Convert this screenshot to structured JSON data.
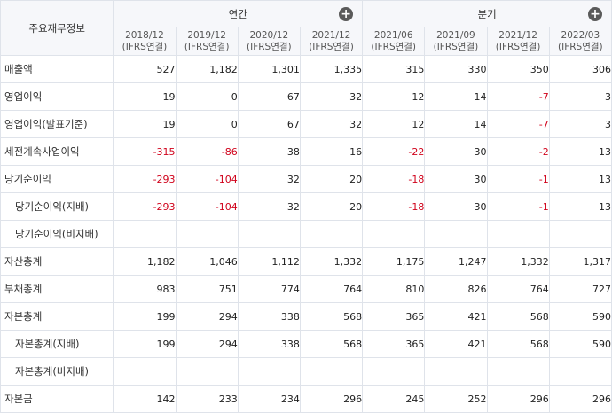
{
  "table": {
    "corner_label": "주요재무정보",
    "groups": [
      {
        "title": "연간",
        "add_icon": "plus-circle-icon"
      },
      {
        "title": "분기",
        "add_icon": "plus-circle-icon"
      }
    ],
    "columns": [
      {
        "date": "2018/12",
        "basis": "(IFRS연결)"
      },
      {
        "date": "2019/12",
        "basis": "(IFRS연결)"
      },
      {
        "date": "2020/12",
        "basis": "(IFRS연결)"
      },
      {
        "date": "2021/12",
        "basis": "(IFRS연결)"
      },
      {
        "date": "2021/06",
        "basis": "(IFRS연결)"
      },
      {
        "date": "2021/09",
        "basis": "(IFRS연결)"
      },
      {
        "date": "2021/12",
        "basis": "(IFRS연결)"
      },
      {
        "date": "2022/03",
        "basis": "(IFRS연결)"
      }
    ],
    "rows": [
      {
        "label": "매출액",
        "indent": false,
        "values": [
          "527",
          "1,182",
          "1,301",
          "1,335",
          "315",
          "330",
          "350",
          "306"
        ]
      },
      {
        "label": "영업이익",
        "indent": false,
        "values": [
          "19",
          "0",
          "67",
          "32",
          "12",
          "14",
          "-7",
          "3"
        ]
      },
      {
        "label": "영업이익(발표기준)",
        "indent": false,
        "values": [
          "19",
          "0",
          "67",
          "32",
          "12",
          "14",
          "-7",
          "3"
        ]
      },
      {
        "label": "세전계속사업이익",
        "indent": false,
        "values": [
          "-315",
          "-86",
          "38",
          "16",
          "-22",
          "30",
          "-2",
          "13"
        ]
      },
      {
        "label": "당기순이익",
        "indent": false,
        "values": [
          "-293",
          "-104",
          "32",
          "20",
          "-18",
          "30",
          "-1",
          "13"
        ]
      },
      {
        "label": "당기순이익(지배)",
        "indent": true,
        "values": [
          "-293",
          "-104",
          "32",
          "20",
          "-18",
          "30",
          "-1",
          "13"
        ]
      },
      {
        "label": "당기순이익(비지배)",
        "indent": true,
        "values": [
          "",
          "",
          "",
          "",
          "",
          "",
          "",
          ""
        ]
      },
      {
        "label": "자산총계",
        "indent": false,
        "values": [
          "1,182",
          "1,046",
          "1,112",
          "1,332",
          "1,175",
          "1,247",
          "1,332",
          "1,317"
        ]
      },
      {
        "label": "부채총계",
        "indent": false,
        "values": [
          "983",
          "751",
          "774",
          "764",
          "810",
          "826",
          "764",
          "727"
        ]
      },
      {
        "label": "자본총계",
        "indent": false,
        "values": [
          "199",
          "294",
          "338",
          "568",
          "365",
          "421",
          "568",
          "590"
        ]
      },
      {
        "label": "자본총계(지배)",
        "indent": true,
        "values": [
          "199",
          "294",
          "338",
          "568",
          "365",
          "421",
          "568",
          "590"
        ]
      },
      {
        "label": "자본총계(비지배)",
        "indent": true,
        "values": [
          "",
          "",
          "",
          "",
          "",
          "",
          "",
          ""
        ]
      },
      {
        "label": "자본금",
        "indent": false,
        "values": [
          "142",
          "233",
          "234",
          "296",
          "245",
          "252",
          "296",
          "296"
        ]
      }
    ],
    "colors": {
      "negative": "#d0021b",
      "header_bg": "#f6f7fa",
      "border": "#dfe3ea"
    }
  }
}
